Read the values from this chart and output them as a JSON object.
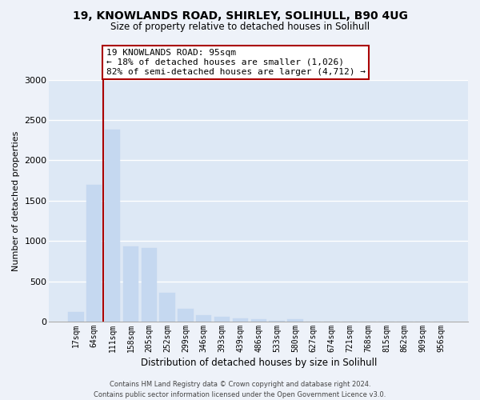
{
  "title_line1": "19, KNOWLANDS ROAD, SHIRLEY, SOLIHULL, B90 4UG",
  "title_line2": "Size of property relative to detached houses in Solihull",
  "xlabel": "Distribution of detached houses by size in Solihull",
  "ylabel": "Number of detached properties",
  "categories": [
    "17sqm",
    "64sqm",
    "111sqm",
    "158sqm",
    "205sqm",
    "252sqm",
    "299sqm",
    "346sqm",
    "393sqm",
    "439sqm",
    "486sqm",
    "533sqm",
    "580sqm",
    "627sqm",
    "674sqm",
    "721sqm",
    "768sqm",
    "815sqm",
    "862sqm",
    "909sqm",
    "956sqm"
  ],
  "values": [
    115,
    1700,
    2380,
    930,
    910,
    355,
    155,
    80,
    58,
    43,
    28,
    8,
    28,
    0,
    0,
    0,
    0,
    0,
    0,
    0,
    0
  ],
  "bar_color": "#c5d8f0",
  "bar_edge_color": "#c5d8f0",
  "vline_x": 1.5,
  "vline_color": "#aa0000",
  "annotation_text": "19 KNOWLANDS ROAD: 95sqm\n← 18% of detached houses are smaller (1,026)\n82% of semi-detached houses are larger (4,712) →",
  "annotation_box_facecolor": "#ffffff",
  "annotation_box_edgecolor": "#aa0000",
  "ylim": [
    0,
    3000
  ],
  "yticks": [
    0,
    500,
    1000,
    1500,
    2000,
    2500,
    3000
  ],
  "plot_bg_color": "#dde8f5",
  "fig_bg_color": "#eef2f9",
  "grid_color": "#ffffff",
  "footer": "Contains HM Land Registry data © Crown copyright and database right 2024.\nContains public sector information licensed under the Open Government Licence v3.0."
}
